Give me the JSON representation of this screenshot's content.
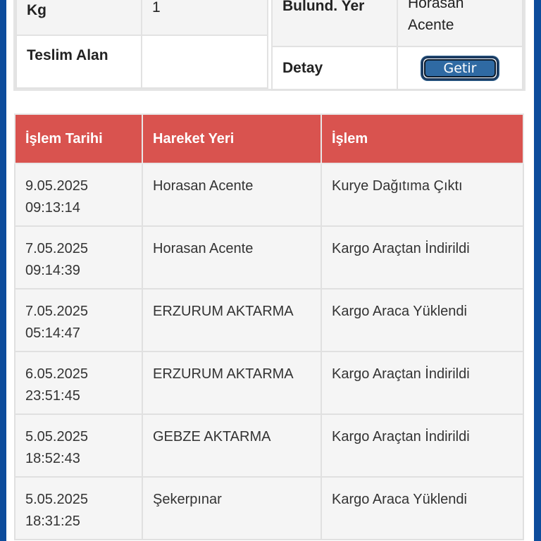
{
  "info": {
    "kg_label": "Kg",
    "kg_value": "1",
    "teslim_label": "Teslim Alan",
    "teslim_value": "",
    "bulund_label": "Bulund. Yer",
    "bulund_value": "Horasan Acente",
    "detay_label": "Detay",
    "detay_button": "Getir"
  },
  "movements": {
    "headers": [
      "İşlem Tarihi",
      "Hareket Yeri",
      "İşlem"
    ],
    "rows": [
      {
        "date": "9.05.2025",
        "time": "09:13:14",
        "place": "Horasan Acente",
        "action": "Kurye Dağıtıma Çıktı"
      },
      {
        "date": "7.05.2025",
        "time": "09:14:39",
        "place": "Horasan Acente",
        "action": "Kargo Araçtan İndirildi"
      },
      {
        "date": "7.05.2025",
        "time": "05:14:47",
        "place": "ERZURUM AKTARMA",
        "action": "Kargo Araca Yüklendi"
      },
      {
        "date": "6.05.2025",
        "time": "23:51:45",
        "place": "ERZURUM AKTARMA",
        "action": "Kargo Araçtan İndirildi"
      },
      {
        "date": "5.05.2025",
        "time": "18:52:43",
        "place": "GEBZE AKTARMA",
        "action": "Kargo Araçtan İndirildi"
      },
      {
        "date": "5.05.2025",
        "time": "18:31:25",
        "place": "Şekerpınar",
        "action": "Kargo Araca Yüklendi"
      }
    ]
  },
  "colors": {
    "frame": "#0d4c9c",
    "header": "#d9534f",
    "button": "#2f6aa3"
  }
}
